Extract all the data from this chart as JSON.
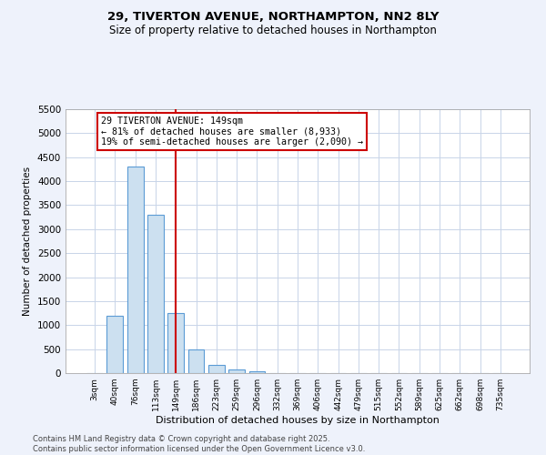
{
  "title1": "29, TIVERTON AVENUE, NORTHAMPTON, NN2 8LY",
  "title2": "Size of property relative to detached houses in Northampton",
  "xlabel": "Distribution of detached houses by size in Northampton",
  "ylabel": "Number of detached properties",
  "categories": [
    "3sqm",
    "40sqm",
    "76sqm",
    "113sqm",
    "149sqm",
    "186sqm",
    "223sqm",
    "259sqm",
    "296sqm",
    "332sqm",
    "369sqm",
    "406sqm",
    "442sqm",
    "479sqm",
    "515sqm",
    "552sqm",
    "589sqm",
    "625sqm",
    "662sqm",
    "698sqm",
    "735sqm"
  ],
  "values": [
    0,
    1200,
    4300,
    3300,
    1250,
    490,
    175,
    80,
    30,
    5,
    0,
    0,
    0,
    0,
    0,
    0,
    0,
    0,
    0,
    0,
    0
  ],
  "ylim": [
    0,
    5500
  ],
  "yticks": [
    0,
    500,
    1000,
    1500,
    2000,
    2500,
    3000,
    3500,
    4000,
    4500,
    5000,
    5500
  ],
  "bar_color": "#cce0f0",
  "bar_edge_color": "#5b9bd5",
  "vline_x_index": 4,
  "vline_color": "#cc0000",
  "annotation_text": "29 TIVERTON AVENUE: 149sqm\n← 81% of detached houses are smaller (8,933)\n19% of semi-detached houses are larger (2,090) →",
  "annotation_box_color": "#cc0000",
  "footer_text": "Contains HM Land Registry data © Crown copyright and database right 2025.\nContains public sector information licensed under the Open Government Licence v3.0.",
  "bg_color": "#eef2fb",
  "plot_bg_color": "#ffffff",
  "grid_color": "#c8d4e8"
}
